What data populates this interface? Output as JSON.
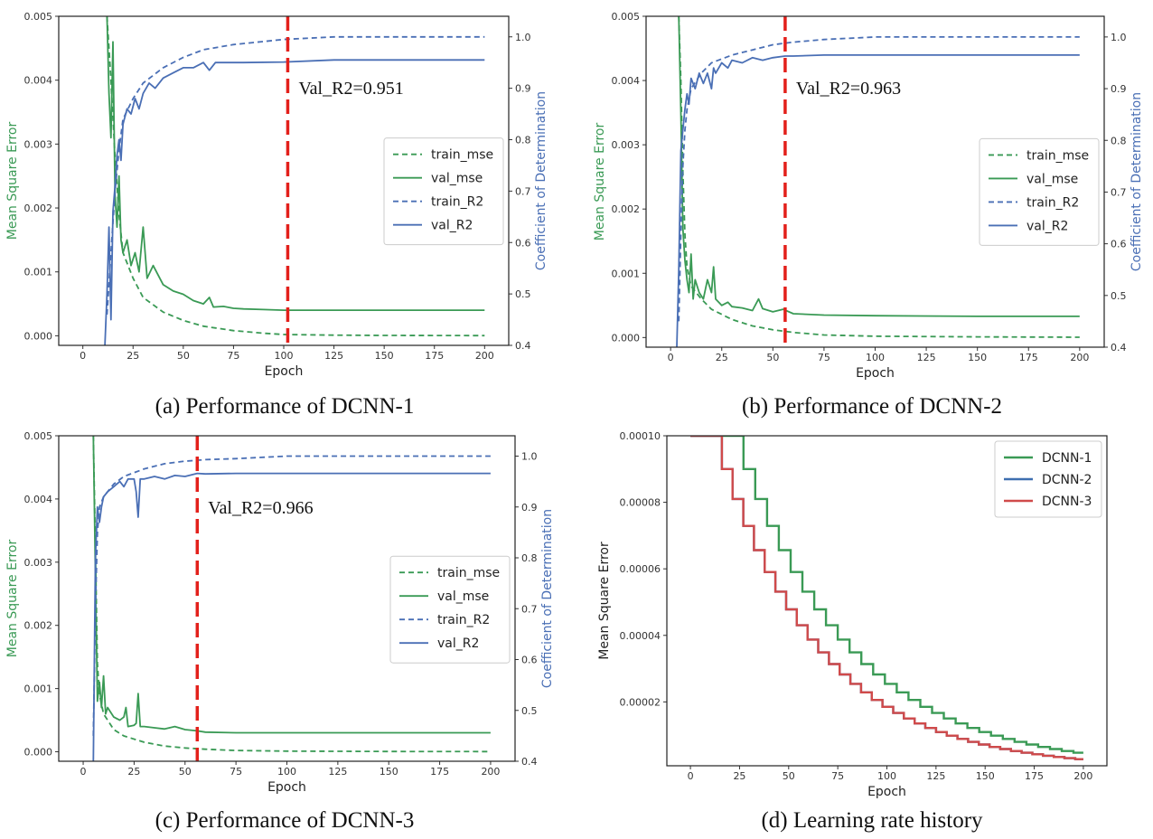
{
  "panels": [
    {
      "caption": "(a) Performance of DCNN-1",
      "chart_data": {
        "type": "line",
        "title": "",
        "xlabel": "Epoch",
        "ylabel": "Mean Square Error",
        "ylabel_right": "Coefficient of Determination",
        "xlim": [
          -12,
          212
        ],
        "ylim": [
          -0.00015,
          0.005
        ],
        "ylim_right": [
          0.4,
          1.04
        ],
        "xticks": [
          "0",
          "25",
          "50",
          "75",
          "100",
          "125",
          "150",
          "175",
          "200"
        ],
        "yticks": [
          "0.000",
          "0.001",
          "0.002",
          "0.003",
          "0.004",
          "0.005"
        ],
        "yticks_right": [
          "0.4",
          "0.5",
          "0.6",
          "0.7",
          "0.8",
          "0.9",
          "1.0"
        ],
        "legend": "center-right",
        "annotation": {
          "text": "Val_R2=0.951",
          "epoch": 102
        },
        "colors": {
          "mse": "#3a9a55",
          "r2": "#4a6fb5",
          "marker": "#e3201b"
        },
        "series": [
          {
            "name": "train_mse",
            "axis": "left",
            "style": "dashed",
            "x": [
              12,
              14,
              16,
              18,
              20,
              25,
              30,
              40,
              50,
              60,
              75,
              90,
              100,
              125,
              150,
              200
            ],
            "y": [
              0.005,
              0.004,
              0.0028,
              0.0019,
              0.0013,
              0.0009,
              0.0006,
              0.00037,
              0.00024,
              0.00015,
              8e-05,
              4e-05,
              2e-05,
              1e-05,
              5e-06,
              3e-06
            ]
          },
          {
            "name": "val_mse",
            "axis": "left",
            "style": "solid",
            "x": [
              12,
              13,
              14,
              15,
              16,
              17,
              18,
              19,
              20,
              22,
              24,
              26,
              28,
              30,
              32,
              35,
              40,
              45,
              50,
              55,
              60,
              63,
              65,
              70,
              75,
              80,
              90,
              100,
              125,
              150,
              200
            ],
            "y": [
              0.005,
              0.0038,
              0.0031,
              0.0046,
              0.0022,
              0.0017,
              0.0025,
              0.0015,
              0.0013,
              0.0015,
              0.0011,
              0.0013,
              0.001,
              0.0017,
              0.0009,
              0.0011,
              0.0008,
              0.0007,
              0.00065,
              0.00055,
              0.0005,
              0.0006,
              0.00045,
              0.00046,
              0.00043,
              0.00042,
              0.00041,
              0.0004,
              0.0004,
              0.0004,
              0.0004
            ]
          },
          {
            "name": "train_R2",
            "axis": "right",
            "style": "dashed",
            "x": [
              12,
              14,
              16,
              18,
              20,
              25,
              30,
              40,
              50,
              60,
              75,
              100,
              125,
              150,
              200
            ],
            "y": [
              0.46,
              0.58,
              0.7,
              0.78,
              0.84,
              0.88,
              0.91,
              0.94,
              0.96,
              0.975,
              0.985,
              0.995,
              1.0,
              1.0,
              1.0
            ]
          },
          {
            "name": "val_R2",
            "axis": "right",
            "style": "solid",
            "x": [
              11,
              12,
              13,
              14,
              15,
              16,
              17,
              18,
              19,
              20,
              22,
              24,
              26,
              28,
              30,
              33,
              36,
              40,
              45,
              50,
              55,
              60,
              63,
              66,
              70,
              80,
              100,
              125,
              150,
              200
            ],
            "y": [
              0.4,
              0.5,
              0.63,
              0.45,
              0.66,
              0.71,
              0.77,
              0.8,
              0.76,
              0.83,
              0.86,
              0.85,
              0.88,
              0.86,
              0.89,
              0.91,
              0.9,
              0.92,
              0.93,
              0.94,
              0.94,
              0.95,
              0.935,
              0.95,
              0.95,
              0.95,
              0.951,
              0.955,
              0.955,
              0.955
            ]
          }
        ]
      }
    },
    {
      "caption": "(b) Performance of DCNN-2",
      "chart_data": {
        "type": "line",
        "title": "",
        "xlabel": "Epoch",
        "ylabel": "Mean Square Error",
        "ylabel_right": "Coefficient of Determination",
        "xlim": [
          -12,
          212
        ],
        "ylim": [
          -0.00015,
          0.005
        ],
        "ylim_right": [
          0.4,
          1.04
        ],
        "xticks": [
          "0",
          "25",
          "50",
          "75",
          "100",
          "125",
          "150",
          "175",
          "200"
        ],
        "yticks": [
          "0.000",
          "0.001",
          "0.002",
          "0.003",
          "0.004",
          "0.005"
        ],
        "yticks_right": [
          "0.4",
          "0.5",
          "0.6",
          "0.7",
          "0.8",
          "0.9",
          "1.0"
        ],
        "legend": "center-right",
        "annotation": {
          "text": "Val_R2=0.963",
          "epoch": 56
        },
        "colors": {
          "mse": "#3a9a55",
          "r2": "#4a6fb5",
          "marker": "#e3201b"
        },
        "series": [
          {
            "name": "train_mse",
            "axis": "left",
            "style": "dashed",
            "x": [
              4,
              5,
              6,
              7,
              8,
              10,
              15,
              20,
              30,
              40,
              50,
              60,
              75,
              100,
              150,
              200
            ],
            "y": [
              0.005,
              0.004,
              0.0026,
              0.0016,
              0.0011,
              0.0008,
              0.0006,
              0.00044,
              0.00028,
              0.00018,
              0.00012,
              8e-05,
              4e-05,
              2e-05,
              1e-05,
              5e-06
            ]
          },
          {
            "name": "val_mse",
            "axis": "left",
            "style": "solid",
            "x": [
              4,
              5,
              6,
              7,
              8,
              9,
              10,
              11,
              12,
              14,
              16,
              18,
              20,
              21,
              22,
              25,
              28,
              30,
              35,
              40,
              43,
              45,
              50,
              55,
              60,
              75,
              100,
              150,
              200
            ],
            "y": [
              0.005,
              0.0035,
              0.0017,
              0.0012,
              0.0009,
              0.0007,
              0.0013,
              0.0006,
              0.0009,
              0.0007,
              0.0006,
              0.0009,
              0.0007,
              0.0011,
              0.0006,
              0.0005,
              0.00055,
              0.00048,
              0.00046,
              0.00042,
              0.0006,
              0.00045,
              0.0004,
              0.00044,
              0.00037,
              0.00035,
              0.00034,
              0.00033,
              0.00033
            ]
          },
          {
            "name": "train_R2",
            "axis": "right",
            "style": "dashed",
            "x": [
              4,
              5,
              6,
              7,
              8,
              10,
              15,
              20,
              30,
              40,
              50,
              60,
              75,
              100,
              125,
              150,
              200
            ],
            "y": [
              0.45,
              0.62,
              0.75,
              0.82,
              0.86,
              0.9,
              0.93,
              0.95,
              0.965,
              0.975,
              0.985,
              0.99,
              0.995,
              1.0,
              1.0,
              1.0,
              1.0
            ]
          },
          {
            "name": "val_R2",
            "axis": "right",
            "style": "solid",
            "x": [
              3,
              4,
              5,
              6,
              7,
              8,
              9,
              10,
              12,
              14,
              16,
              18,
              20,
              21,
              22,
              25,
              28,
              30,
              35,
              40,
              45,
              50,
              56,
              60,
              75,
              100,
              125,
              150,
              200
            ],
            "y": [
              0.4,
              0.55,
              0.78,
              0.82,
              0.86,
              0.89,
              0.87,
              0.92,
              0.9,
              0.93,
              0.91,
              0.93,
              0.9,
              0.94,
              0.93,
              0.95,
              0.94,
              0.955,
              0.95,
              0.96,
              0.955,
              0.96,
              0.963,
              0.963,
              0.965,
              0.965,
              0.965,
              0.965,
              0.965
            ]
          }
        ]
      }
    },
    {
      "caption": "(c) Performance of DCNN-3",
      "chart_data": {
        "type": "line",
        "title": "",
        "xlabel": "Epoch",
        "ylabel": "Mean Square Error",
        "ylabel_right": "Coefficient of Determination",
        "xlim": [
          -12,
          212
        ],
        "ylim": [
          -0.00015,
          0.005
        ],
        "ylim_right": [
          0.4,
          1.04
        ],
        "xticks": [
          "0",
          "25",
          "50",
          "75",
          "100",
          "125",
          "150",
          "175",
          "200"
        ],
        "yticks": [
          "0.000",
          "0.001",
          "0.002",
          "0.003",
          "0.004",
          "0.005"
        ],
        "yticks_right": [
          "0.4",
          "0.5",
          "0.6",
          "0.7",
          "0.8",
          "0.9",
          "1.0"
        ],
        "legend": "center-right",
        "annotation": {
          "text": "Val_R2=0.966",
          "epoch": 56
        },
        "colors": {
          "mse": "#3a9a55",
          "r2": "#4a6fb5",
          "marker": "#e3201b"
        },
        "series": [
          {
            "name": "train_mse",
            "axis": "left",
            "style": "dashed",
            "x": [
              5,
              6,
              7,
              8,
              10,
              15,
              20,
              30,
              40,
              50,
              60,
              75,
              100,
              150,
              200
            ],
            "y": [
              0.005,
              0.0032,
              0.0014,
              0.0009,
              0.0006,
              0.00035,
              0.00025,
              0.00015,
              9e-05,
              6e-05,
              4e-05,
              2e-05,
              1e-05,
              5e-06,
              3e-06
            ]
          },
          {
            "name": "val_mse",
            "axis": "left",
            "style": "solid",
            "x": [
              5,
              6,
              7,
              8,
              9,
              10,
              11,
              12,
              15,
              18,
              20,
              21,
              22,
              25,
              26,
              27,
              28,
              30,
              35,
              40,
              45,
              50,
              56,
              60,
              75,
              100,
              150,
              200
            ],
            "y": [
              0.005,
              0.0028,
              0.0008,
              0.0011,
              0.0007,
              0.0012,
              0.0006,
              0.0007,
              0.00055,
              0.0005,
              0.00055,
              0.0007,
              0.0004,
              0.00042,
              0.00045,
              0.00092,
              0.0004,
              0.0004,
              0.00038,
              0.00036,
              0.0004,
              0.00035,
              0.00033,
              0.00031,
              0.0003,
              0.0003,
              0.0003,
              0.0003
            ]
          },
          {
            "name": "train_R2",
            "axis": "right",
            "style": "dashed",
            "x": [
              5,
              6,
              7,
              8,
              10,
              15,
              20,
              30,
              40,
              50,
              60,
              75,
              100,
              125,
              150,
              200
            ],
            "y": [
              0.45,
              0.7,
              0.85,
              0.9,
              0.92,
              0.945,
              0.96,
              0.975,
              0.985,
              0.99,
              0.993,
              0.995,
              1.0,
              1.0,
              1.0,
              1.0
            ]
          },
          {
            "name": "val_R2",
            "axis": "right",
            "style": "solid",
            "x": [
              5,
              6,
              7,
              8,
              9,
              10,
              12,
              15,
              18,
              20,
              22,
              25,
              26,
              27,
              28,
              30,
              35,
              40,
              45,
              50,
              56,
              60,
              75,
              100,
              125,
              150,
              200
            ],
            "y": [
              0.4,
              0.8,
              0.9,
              0.87,
              0.9,
              0.92,
              0.93,
              0.94,
              0.95,
              0.94,
              0.955,
              0.955,
              0.93,
              0.88,
              0.955,
              0.955,
              0.96,
              0.955,
              0.962,
              0.96,
              0.966,
              0.965,
              0.966,
              0.966,
              0.966,
              0.966,
              0.966
            ]
          }
        ]
      }
    },
    {
      "caption": "(d) Learning rate history",
      "chart_data": {
        "type": "line",
        "title": "",
        "xlabel": "Epoch",
        "ylabel": "Mean Square Error",
        "xlim": [
          -12,
          212
        ],
        "ylim": [
          8e-07,
          0.0001
        ],
        "xticks": [
          "0",
          "25",
          "50",
          "75",
          "100",
          "125",
          "150",
          "175",
          "200"
        ],
        "yticks": [
          "0.00002",
          "0.00004",
          "0.00006",
          "0.00008",
          "0.00010"
        ],
        "legend": "top-right",
        "colors": {
          "DCNN-1": "#3a9a55",
          "DCNN-2": "#3e6fb0",
          "DCNN-3": "#d04a4a"
        },
        "series": [
          {
            "name": "DCNN-1",
            "step_start": 27,
            "step_len": 6,
            "factor": 0.9,
            "start": 0.0001
          },
          {
            "name": "DCNN-2",
            "step_start": 16,
            "step_len": 5.45,
            "factor": 0.9,
            "start": 0.0001
          },
          {
            "name": "DCNN-3",
            "step_start": 16,
            "step_len": 5.45,
            "factor": 0.9,
            "start": 0.0001
          }
        ]
      }
    }
  ]
}
